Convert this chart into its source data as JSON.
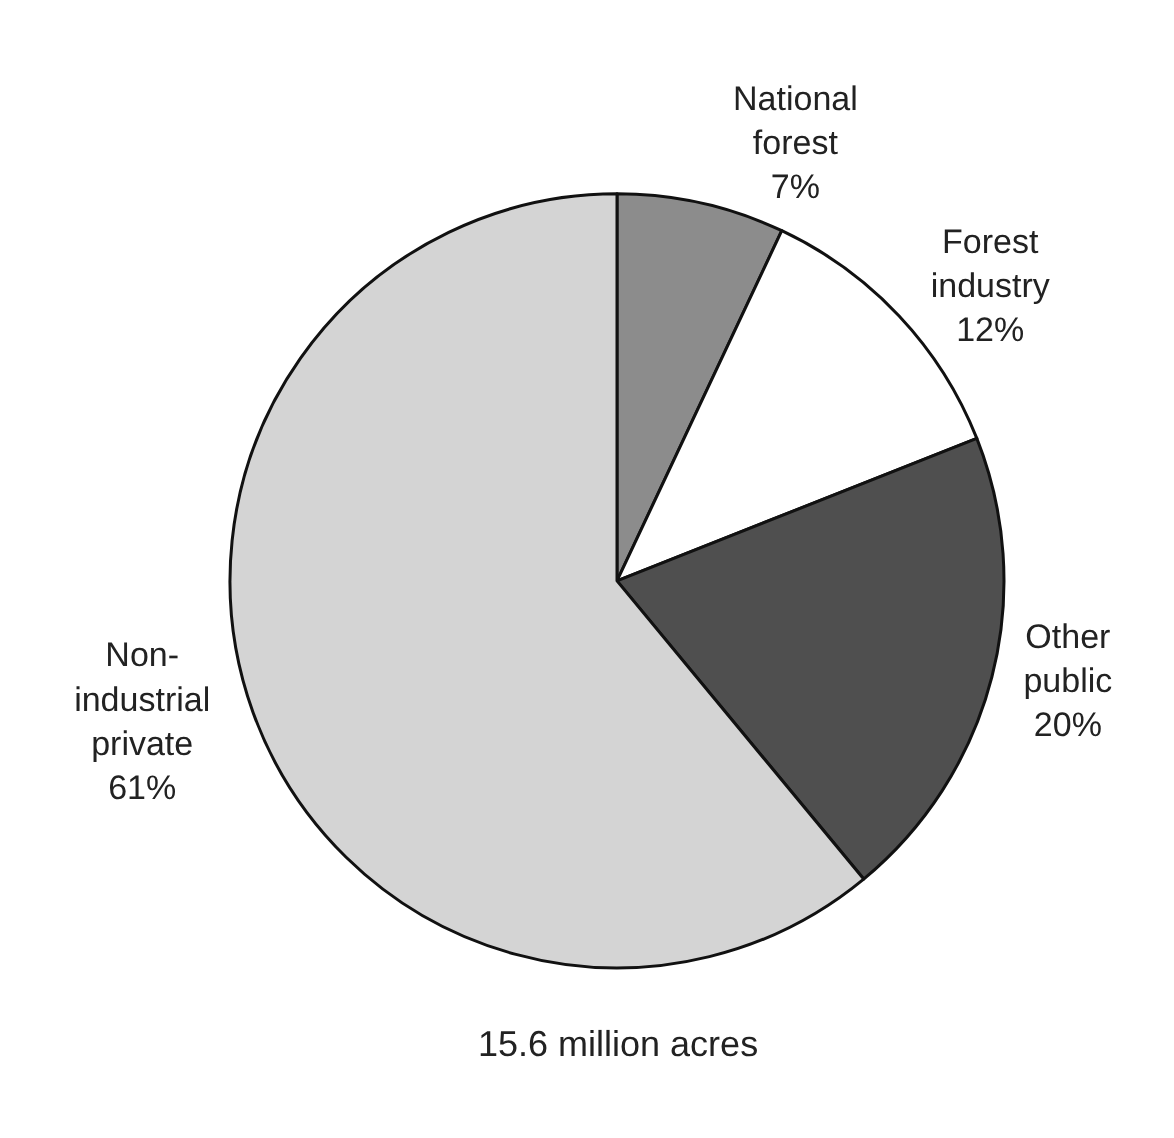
{
  "chart_data": {
    "type": "pie",
    "categories": [
      "National forest",
      "Forest industry",
      "Other public",
      "Non-industrial private"
    ],
    "values": [
      7,
      12,
      20,
      61
    ],
    "value_labels": [
      "7%",
      "12%",
      "20%",
      "61%"
    ],
    "colors": [
      "#8c8c8c",
      "#ffffff",
      "#4f4f4f",
      "#d4d4d4"
    ],
    "annotations": [
      "15.6 million acres"
    ],
    "legend": false
  }
}
